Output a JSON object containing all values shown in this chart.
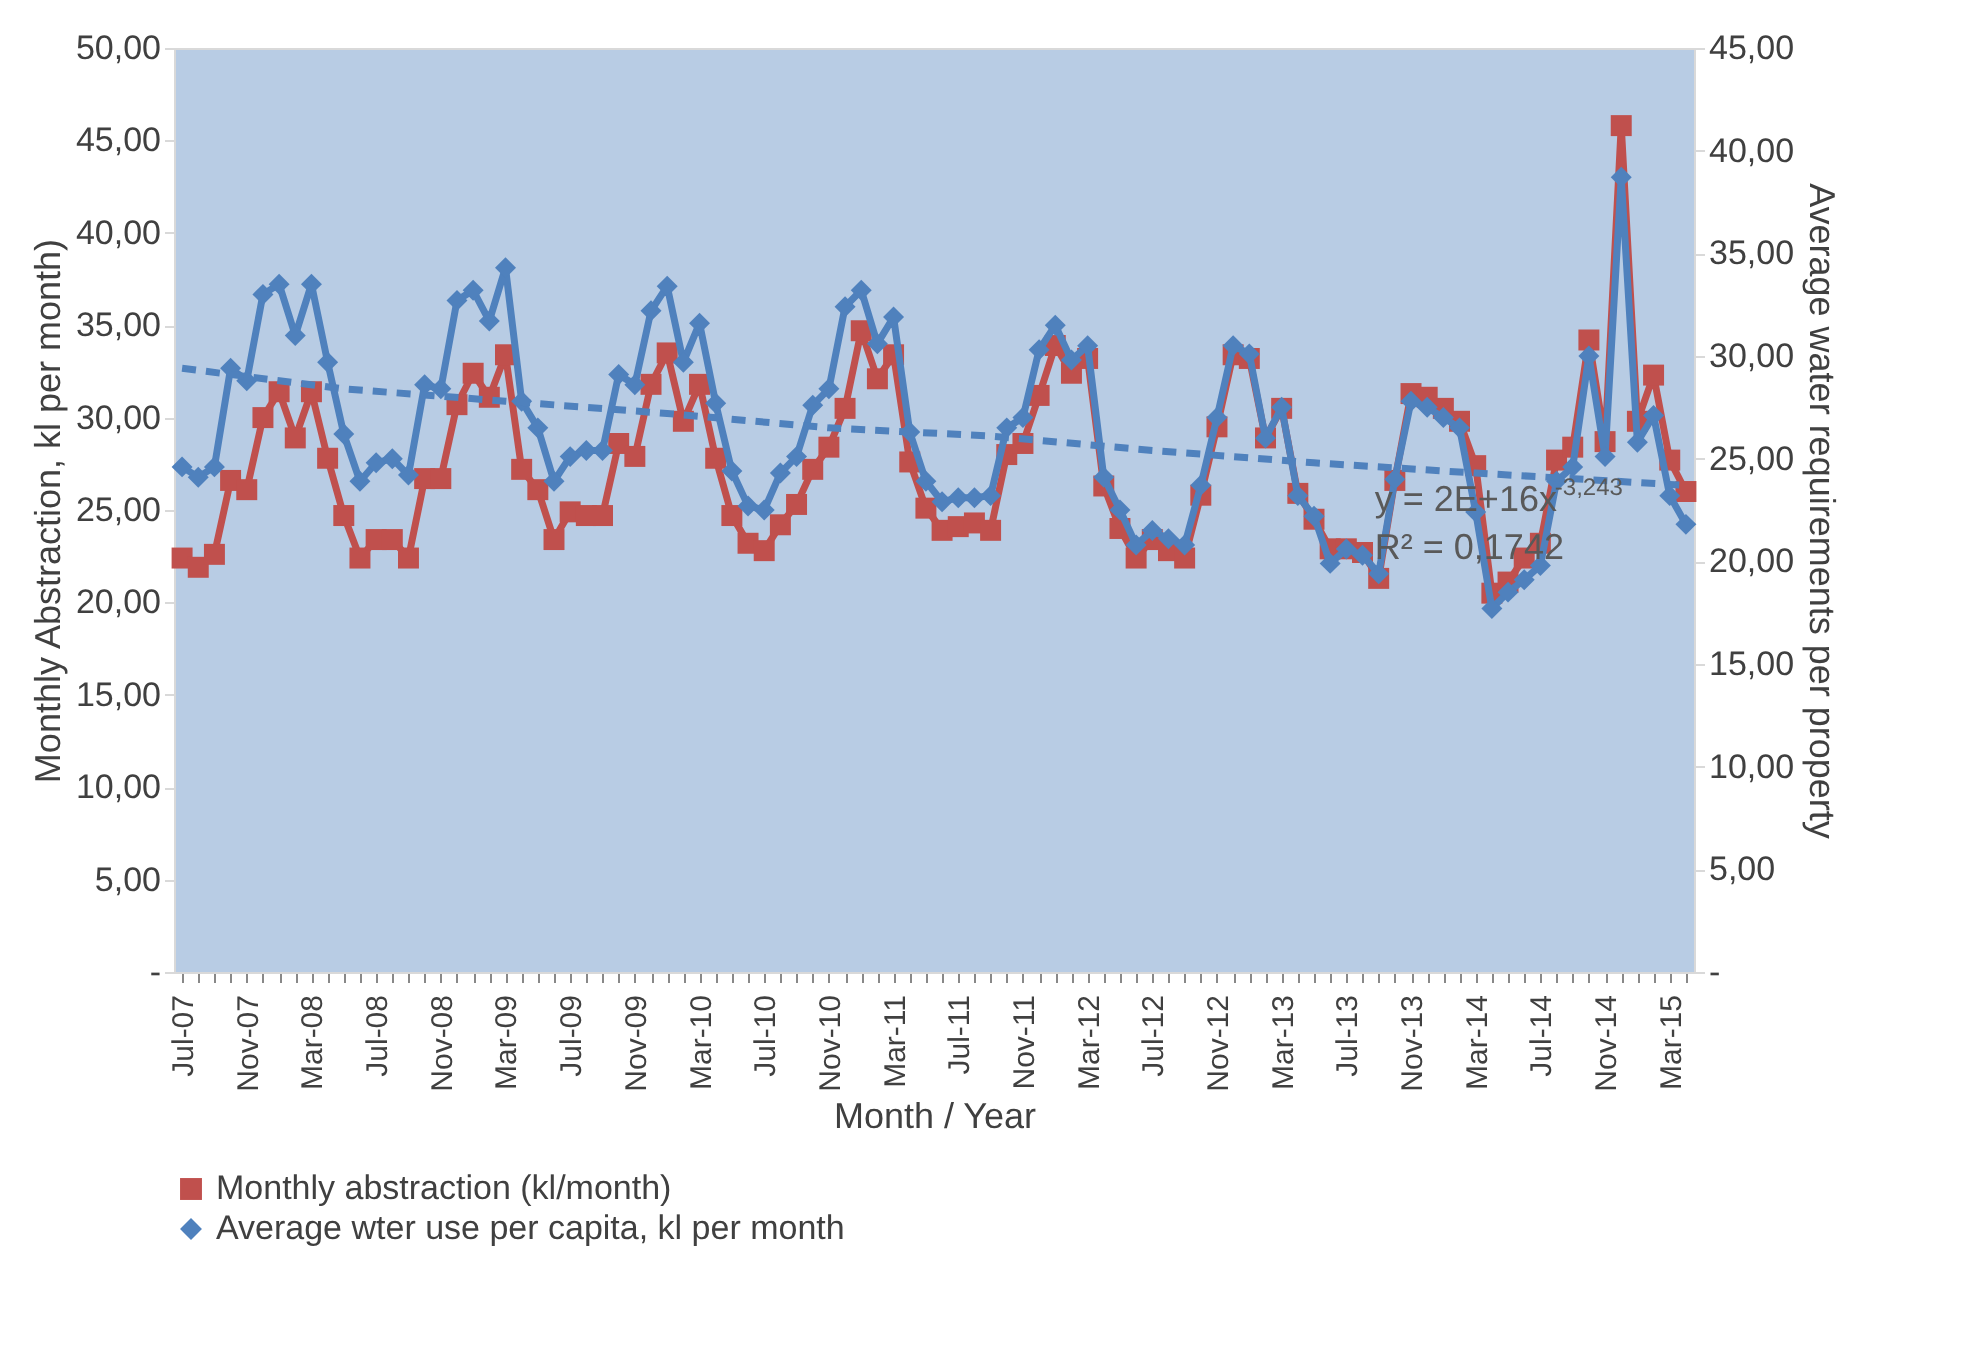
{
  "chart_data": {
    "type": "line",
    "xlabel": "Month / Year",
    "ylabel": "Monthly Abstraction, kl per month)",
    "y2label": "Average water requirements per property",
    "categories": [
      "Jul-07",
      null,
      null,
      null,
      "Nov-07",
      null,
      null,
      null,
      "Mar-08",
      null,
      null,
      null,
      "Jul-08",
      null,
      null,
      null,
      "Nov-08",
      null,
      null,
      null,
      "Mar-09",
      null,
      null,
      null,
      "Jul-09",
      null,
      null,
      null,
      "Nov-09",
      null,
      null,
      null,
      "Mar-10",
      null,
      null,
      null,
      "Jul-10",
      null,
      null,
      null,
      "Nov-10",
      null,
      null,
      null,
      "Mar-11",
      null,
      null,
      null,
      "Jul-11",
      null,
      null,
      null,
      "Nov-11",
      null,
      null,
      null,
      "Mar-12",
      null,
      null,
      null,
      "Jul-12",
      null,
      null,
      null,
      "Nov-12",
      null,
      null,
      null,
      "Mar-13",
      null,
      null,
      null,
      "Jul-13",
      null,
      null,
      null,
      "Nov-13",
      null,
      null,
      null,
      "Mar-14",
      null,
      null,
      null,
      "Jul-14",
      null,
      null,
      null,
      "Nov-14",
      null,
      null,
      null,
      "Mar-15",
      null
    ],
    "series": [
      {
        "name": "Monthly abstraction (kl/month)",
        "color": "#c0504d",
        "marker": "square",
        "line_style": "solid",
        "axis": "y",
        "values": [
          22.4,
          21.9,
          22.6,
          26.6,
          26.1,
          30.0,
          31.4,
          28.9,
          31.4,
          27.8,
          24.7,
          22.4,
          23.4,
          23.4,
          22.4,
          26.7,
          26.7,
          30.7,
          32.4,
          31.1,
          33.4,
          27.2,
          26.1,
          23.4,
          24.9,
          24.7,
          24.7,
          28.6,
          27.9,
          31.8,
          33.5,
          29.8,
          31.8,
          27.8,
          24.7,
          23.2,
          22.8,
          24.2,
          25.3,
          27.2,
          28.4,
          30.5,
          34.7,
          32.1,
          33.4,
          27.6,
          25.1,
          23.9,
          24.1,
          24.3,
          23.9,
          28.0,
          28.6,
          31.2,
          33.9,
          32.4,
          33.2,
          26.3,
          24.0,
          22.4,
          23.4,
          22.8,
          22.4,
          25.8,
          29.5,
          33.4,
          33.2,
          28.9,
          30.5,
          25.9,
          24.5,
          22.9,
          22.9,
          22.7,
          21.3,
          26.6,
          31.3,
          31.1,
          30.5,
          29.8,
          27.4,
          20.5,
          21.1,
          22.4,
          23.2,
          27.7,
          28.4,
          34.2,
          28.7,
          45.8,
          29.8,
          32.3,
          27.7,
          26.0
        ]
      },
      {
        "name": "Average wter use per capita, kl per month",
        "color": "#4f81bd",
        "marker": "diamond",
        "line_style": "solid",
        "axis": "y2",
        "values": [
          24.6,
          24.1,
          24.6,
          29.4,
          28.8,
          33.0,
          33.5,
          31.0,
          33.5,
          29.7,
          26.2,
          23.9,
          24.8,
          25.0,
          24.2,
          28.6,
          28.4,
          32.7,
          33.2,
          31.7,
          34.3,
          27.8,
          26.5,
          23.9,
          25.1,
          25.4,
          25.4,
          29.1,
          28.6,
          32.2,
          33.4,
          29.7,
          31.6,
          27.7,
          24.4,
          22.7,
          22.5,
          24.3,
          25.1,
          27.6,
          28.4,
          32.4,
          33.2,
          30.6,
          31.9,
          26.3,
          23.9,
          22.9,
          23.1,
          23.1,
          23.2,
          26.5,
          27.0,
          30.3,
          31.5,
          29.8,
          30.5,
          24.1,
          22.5,
          20.8,
          21.5,
          21.1,
          20.8,
          23.7,
          27.0,
          30.5,
          30.1,
          26.0,
          27.5,
          23.2,
          22.2,
          19.9,
          20.6,
          20.3,
          19.4,
          24.0,
          27.8,
          27.5,
          27.0,
          26.5,
          22.4,
          17.7,
          18.5,
          19.1,
          19.8,
          23.9,
          24.6,
          30.0,
          25.1,
          38.7,
          25.8,
          27.1,
          23.2,
          21.8
        ]
      },
      {
        "color": "#4f81bd",
        "marker": "none",
        "line_style": "dashed",
        "axis": "y2",
        "values": [
          29.4,
          null,
          null,
          null,
          null,
          null,
          null,
          null,
          null,
          null,
          28.4,
          null,
          null,
          null,
          null,
          null,
          null,
          null,
          null,
          null,
          27.8,
          null,
          null,
          null,
          null,
          null,
          null,
          null,
          null,
          null,
          27.2,
          null,
          null,
          null,
          null,
          null,
          null,
          null,
          null,
          null,
          26.5,
          null,
          null,
          null,
          null,
          null,
          null,
          null,
          null,
          null,
          26.1,
          null,
          null,
          null,
          null,
          null,
          null,
          null,
          null,
          null,
          25.4,
          null,
          null,
          null,
          null,
          null,
          null,
          null,
          null,
          null,
          24.8,
          null,
          null,
          null,
          null,
          null,
          null,
          null,
          null,
          null,
          24.3,
          null,
          null,
          null,
          null,
          null,
          null,
          null,
          null,
          null,
          null,
          null,
          null,
          23.7
        ]
      }
    ],
    "ylim": [
      0,
      50
    ],
    "yticks": [
      {
        "value": 0,
        "label": "-"
      },
      {
        "value": 5,
        "label": "5,00"
      },
      {
        "value": 10,
        "label": "10,00"
      },
      {
        "value": 15,
        "label": "15,00"
      },
      {
        "value": 20,
        "label": "20,00"
      },
      {
        "value": 25,
        "label": "25,00"
      },
      {
        "value": 30,
        "label": "30,00"
      },
      {
        "value": 35,
        "label": "35,00"
      },
      {
        "value": 40,
        "label": "40,00"
      },
      {
        "value": 45,
        "label": "45,00"
      },
      {
        "value": 50,
        "label": "50,00"
      }
    ],
    "y2lim": [
      0,
      45
    ],
    "y2ticks": [
      {
        "value": 0,
        "label": "-"
      },
      {
        "value": 5,
        "label": "5,00"
      },
      {
        "value": 10,
        "label": "10,00"
      },
      {
        "value": 15,
        "label": "15,00"
      },
      {
        "value": 20,
        "label": "20,00"
      },
      {
        "value": 25,
        "label": "25,00"
      },
      {
        "value": 30,
        "label": "30,00"
      },
      {
        "value": 35,
        "label": "35,00"
      },
      {
        "value": 40,
        "label": "40,00"
      },
      {
        "value": 45,
        "label": "45,00"
      }
    ],
    "annotations": [
      "y = 2E+16x$^{-3,243}$",
      "R² = 0,1742"
    ],
    "grid": false,
    "legend": "bottom"
  }
}
